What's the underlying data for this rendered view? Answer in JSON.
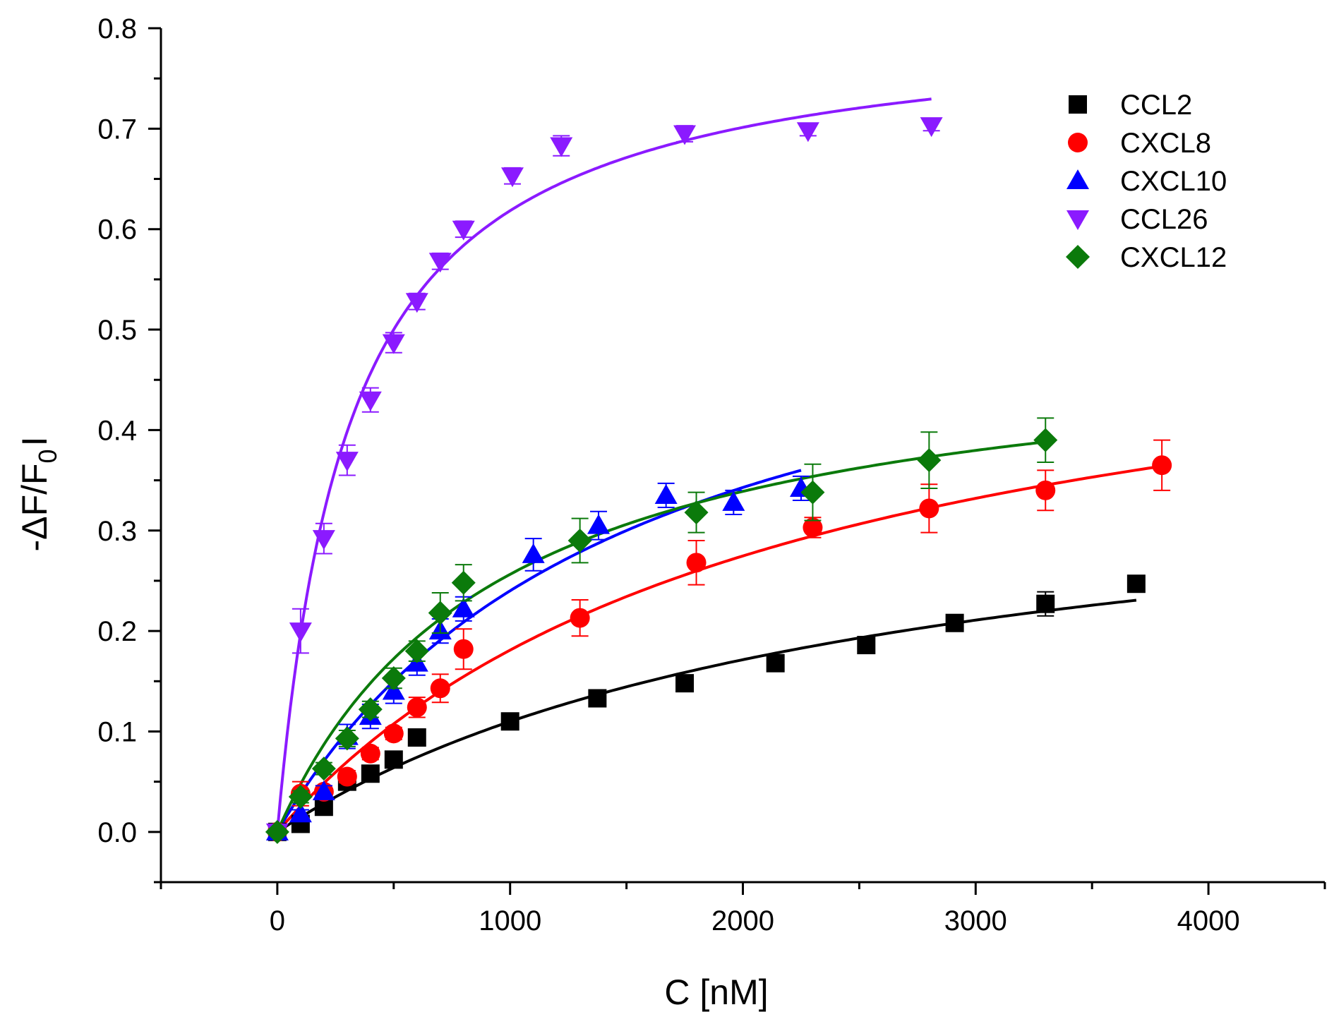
{
  "chart_data": {
    "type": "scatter",
    "xlabel": "C [nM]",
    "ylabel_main": "-ΔF/F",
    "ylabel_sub": "0",
    "ylabel_end": "I",
    "xlim": [
      -500,
      4500
    ],
    "ylim": [
      -0.05,
      0.8
    ],
    "xticks": [
      0,
      1000,
      2000,
      3000,
      4000
    ],
    "xtick_labels": [
      "0",
      "1000",
      "2000",
      "3000",
      "4000"
    ],
    "xminor": [
      -500,
      500,
      1500,
      2500,
      3500,
      4500
    ],
    "yticks": [
      0.0,
      0.1,
      0.2,
      0.3,
      0.4,
      0.5,
      0.6,
      0.7,
      0.8
    ],
    "ytick_labels": [
      "0.0",
      "0.1",
      "0.2",
      "0.3",
      "0.4",
      "0.5",
      "0.6",
      "0.7",
      "0.8"
    ],
    "yminor": [
      -0.05,
      0.05,
      0.15,
      0.25,
      0.35,
      0.45,
      0.55,
      0.65,
      0.75
    ],
    "grid": false,
    "legend_position": "top-right",
    "series": [
      {
        "name": "CCL2",
        "color": "#000000",
        "marker": "square",
        "points": [
          [
            0,
            0
          ],
          [
            100,
            0.008
          ],
          [
            200,
            0.025
          ],
          [
            300,
            0.05
          ],
          [
            400,
            0.058
          ],
          [
            500,
            0.072
          ],
          [
            600,
            0.094
          ],
          [
            1000,
            0.11
          ],
          [
            1375,
            0.133
          ],
          [
            1750,
            0.148
          ],
          [
            2140,
            0.168
          ],
          [
            2530,
            0.186
          ],
          [
            2910,
            0.208
          ],
          [
            3300,
            0.227
          ],
          [
            3690,
            0.247
          ]
        ],
        "errors": [
          0.002,
          0.004,
          0.004,
          0.004,
          0.004,
          0.004,
          0.004,
          0.004,
          0.004,
          0.004,
          0.004,
          0.004,
          0.005,
          0.012,
          0.006
        ],
        "fit": {
          "bmax": 0.39,
          "kd": 2550,
          "xmax": 3690
        }
      },
      {
        "name": "CXCL8",
        "color": "#ff0000",
        "marker": "circle",
        "points": [
          [
            0,
            0
          ],
          [
            100,
            0.038
          ],
          [
            200,
            0.04
          ],
          [
            300,
            0.055
          ],
          [
            400,
            0.078
          ],
          [
            500,
            0.098
          ],
          [
            600,
            0.124
          ],
          [
            700,
            0.143
          ],
          [
            800,
            0.182
          ],
          [
            1300,
            0.213
          ],
          [
            1800,
            0.268
          ],
          [
            2300,
            0.303
          ],
          [
            2800,
            0.322
          ],
          [
            3300,
            0.34
          ],
          [
            3800,
            0.365
          ]
        ],
        "errors": [
          0.002,
          0.012,
          0.006,
          0.006,
          0.006,
          0.006,
          0.01,
          0.014,
          0.02,
          0.018,
          0.022,
          0.01,
          0.024,
          0.02,
          0.025
        ],
        "fit": {
          "bmax": 0.57,
          "kd": 2150,
          "xmax": 3800
        }
      },
      {
        "name": "CXCL10",
        "color": "#0000ff",
        "marker": "triangle-up",
        "points": [
          [
            0,
            0
          ],
          [
            100,
            0.018
          ],
          [
            200,
            0.04
          ],
          [
            300,
            0.095
          ],
          [
            400,
            0.115
          ],
          [
            500,
            0.14
          ],
          [
            600,
            0.168
          ],
          [
            700,
            0.2
          ],
          [
            800,
            0.222
          ],
          [
            1100,
            0.276
          ],
          [
            1380,
            0.305
          ],
          [
            1670,
            0.335
          ],
          [
            1960,
            0.328
          ],
          [
            2250,
            0.342
          ]
        ],
        "errors": [
          0.002,
          0.004,
          0.006,
          0.012,
          0.012,
          0.012,
          0.012,
          0.012,
          0.012,
          0.016,
          0.014,
          0.012,
          0.012,
          0.012
        ],
        "fit": {
          "bmax": 0.6,
          "kd": 1500,
          "xmax": 2250
        }
      },
      {
        "name": "CCL26",
        "color": "#8b1aff",
        "marker": "triangle-down",
        "points": [
          [
            0,
            0
          ],
          [
            100,
            0.2
          ],
          [
            200,
            0.292
          ],
          [
            300,
            0.37
          ],
          [
            400,
            0.43
          ],
          [
            500,
            0.487
          ],
          [
            600,
            0.528
          ],
          [
            700,
            0.568
          ],
          [
            800,
            0.6
          ],
          [
            1010,
            0.653
          ],
          [
            1220,
            0.683
          ],
          [
            1750,
            0.695
          ],
          [
            2280,
            0.698
          ],
          [
            2810,
            0.703
          ]
        ],
        "errors": [
          0.002,
          0.022,
          0.015,
          0.015,
          0.012,
          0.01,
          0.008,
          0.008,
          0.008,
          0.008,
          0.01,
          0.008,
          0.005,
          0.005
        ],
        "fit": {
          "bmax": 0.81,
          "kd": 310,
          "xmax": 2810
        }
      },
      {
        "name": "CXCL12",
        "color": "#0b7a0b",
        "marker": "diamond",
        "points": [
          [
            0,
            0
          ],
          [
            100,
            0.035
          ],
          [
            200,
            0.063
          ],
          [
            300,
            0.093
          ],
          [
            400,
            0.122
          ],
          [
            500,
            0.153
          ],
          [
            600,
            0.18
          ],
          [
            700,
            0.218
          ],
          [
            800,
            0.248
          ],
          [
            1300,
            0.29
          ],
          [
            1800,
            0.318
          ],
          [
            2300,
            0.338
          ],
          [
            2800,
            0.37
          ],
          [
            3300,
            0.39
          ]
        ],
        "errors": [
          0.002,
          0.006,
          0.006,
          0.008,
          0.008,
          0.01,
          0.01,
          0.02,
          0.018,
          0.022,
          0.02,
          0.028,
          0.028,
          0.022
        ],
        "fit": {
          "bmax": 0.5,
          "kd": 950,
          "xmax": 3300
        }
      }
    ]
  }
}
